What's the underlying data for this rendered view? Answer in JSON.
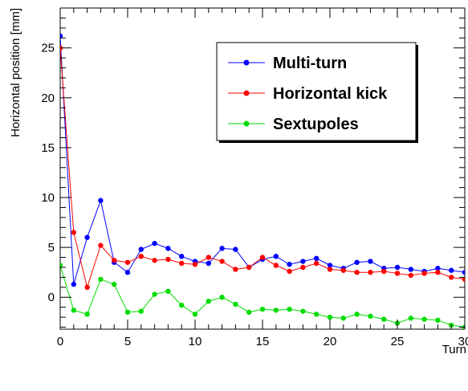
{
  "chart_data": {
    "type": "line",
    "xlabel": "Turn",
    "ylabel": "Horizontal position [mm]",
    "xlim": [
      0,
      30
    ],
    "ylim": [
      -3.2,
      29
    ],
    "x_ticks": [
      0,
      5,
      10,
      15,
      20,
      25,
      30
    ],
    "y_ticks": [
      0,
      5,
      10,
      15,
      20,
      25
    ],
    "x_tick_labels": [
      "0",
      "5",
      "10",
      "15",
      "20",
      "25",
      "30"
    ],
    "y_tick_labels": [
      "0",
      "5",
      "10",
      "15",
      "20",
      "25"
    ],
    "grid": false,
    "legend_position": "top-right",
    "x": [
      0,
      1,
      2,
      3,
      4,
      5,
      6,
      7,
      8,
      9,
      10,
      11,
      12,
      13,
      14,
      15,
      16,
      17,
      18,
      19,
      20,
      21,
      22,
      23,
      24,
      25,
      26,
      27,
      28,
      29,
      30
    ],
    "series": [
      {
        "name": "Multi-turn",
        "color": "#0000ff",
        "values": [
          26.2,
          1.3,
          6.0,
          9.7,
          3.5,
          2.5,
          4.8,
          5.4,
          4.9,
          4.1,
          3.6,
          3.4,
          4.9,
          4.8,
          3.0,
          3.8,
          4.1,
          3.3,
          3.6,
          3.9,
          3.2,
          2.9,
          3.5,
          3.6,
          2.9,
          3.0,
          2.8,
          2.6,
          2.9,
          2.7,
          2.5
        ]
      },
      {
        "name": "Horizontal kick",
        "color": "#ff0000",
        "values": [
          25.0,
          6.5,
          1.0,
          5.2,
          3.7,
          3.5,
          4.1,
          3.7,
          3.8,
          3.4,
          3.3,
          4.0,
          3.6,
          2.8,
          3.0,
          4.0,
          3.2,
          2.6,
          3.0,
          3.4,
          2.8,
          2.7,
          2.5,
          2.5,
          2.6,
          2.4,
          2.2,
          2.4,
          2.5,
          2.0,
          1.8
        ]
      },
      {
        "name": "Sextupoles",
        "color": "#00dd00",
        "values": [
          3.2,
          -1.3,
          -1.7,
          1.8,
          1.3,
          -1.5,
          -1.4,
          0.3,
          0.6,
          -0.8,
          -1.7,
          -0.4,
          0.0,
          -0.7,
          -1.5,
          -1.2,
          -1.3,
          -1.2,
          -1.4,
          -1.7,
          -2.0,
          -2.1,
          -1.7,
          -1.9,
          -2.2,
          -2.6,
          -2.1,
          -2.2,
          -2.3,
          -2.8,
          -3.0
        ]
      }
    ]
  }
}
